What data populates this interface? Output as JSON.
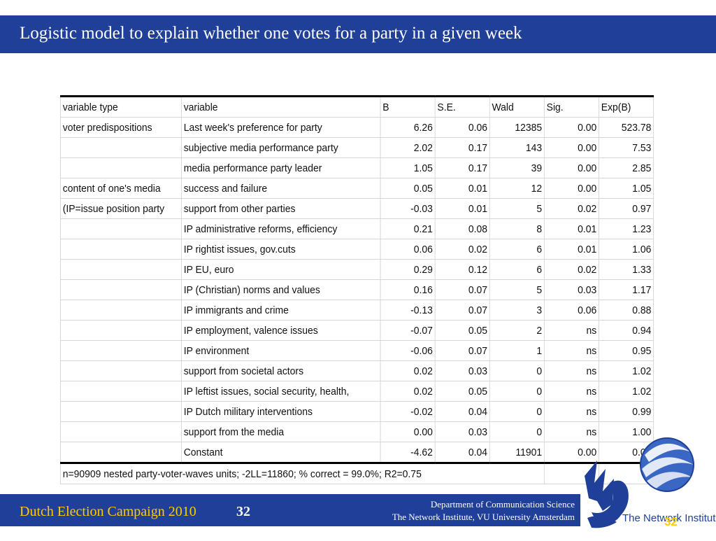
{
  "title": "Logistic model to explain whether one votes for a party in a given week",
  "table": {
    "headers": [
      "variable type",
      "variable",
      "B",
      "S.E.",
      "Wald",
      "Sig.",
      "Exp(B)"
    ],
    "rows": [
      [
        "voter predispositions",
        "Last week's preference for party",
        "6.26",
        "0.06",
        "12385",
        "0.00",
        "523.78"
      ],
      [
        "",
        "subjective media performance party",
        "2.02",
        "0.17",
        "143",
        "0.00",
        "7.53"
      ],
      [
        "",
        "media performance party leader",
        "1.05",
        "0.17",
        "39",
        "0.00",
        "2.85"
      ],
      [
        "content of one's media",
        "success and failure",
        "0.05",
        "0.01",
        "12",
        "0.00",
        "1.05"
      ],
      [
        " (IP=issue position party",
        "support from other parties",
        "-0.03",
        "0.01",
        "5",
        "0.02",
        "0.97"
      ],
      [
        "",
        "IP administrative reforms, efficiency",
        "0.21",
        "0.08",
        "8",
        "0.01",
        "1.23"
      ],
      [
        "",
        "IP rightist issues, gov.cuts",
        "0.06",
        "0.02",
        "6",
        "0.01",
        "1.06"
      ],
      [
        "",
        "IP EU, euro",
        "0.29",
        "0.12",
        "6",
        "0.02",
        "1.33"
      ],
      [
        "",
        "IP (Christian) norms and values",
        "0.16",
        "0.07",
        "5",
        "0.03",
        "1.17"
      ],
      [
        "",
        "IP immigrants and crime",
        "-0.13",
        "0.07",
        "3",
        "0.06",
        "0.88"
      ],
      [
        "",
        "IP employment, valence issues",
        "-0.07",
        "0.05",
        "2",
        "ns",
        "0.94"
      ],
      [
        "",
        "IP environment",
        "-0.06",
        "0.07",
        "1",
        "ns",
        "0.95"
      ],
      [
        "",
        "support from societal actors",
        "0.02",
        "0.03",
        "0",
        "ns",
        "1.02"
      ],
      [
        "",
        "IP leftist issues, social security, health,",
        "0.02",
        "0.05",
        "0",
        "ns",
        "1.02"
      ],
      [
        "",
        "IP Dutch military interventions",
        "-0.02",
        "0.04",
        "0",
        "ns",
        "0.99"
      ],
      [
        "",
        "support from the media",
        "0.00",
        "0.03",
        "0",
        "ns",
        "1.00"
      ],
      [
        "",
        "Constant",
        "-4.62",
        "0.04",
        "11901",
        "0.00",
        "0.01"
      ]
    ],
    "note": "n=90909 nested party-voter-waves units; -2LL=11860; % correct = 99.0%;  R2=0.75"
  },
  "footer": {
    "campaign": "Dutch Election Campaign 2010",
    "page": "32",
    "dept": "Department of Communication Science",
    "institute": "The Network Institute,  VU University Amsterdam"
  },
  "logo": {
    "network_text": "The Network Institute",
    "page_small": "32"
  },
  "colors": {
    "brand_blue": "#1f3f98",
    "accent_yellow": "#ffcc00"
  }
}
